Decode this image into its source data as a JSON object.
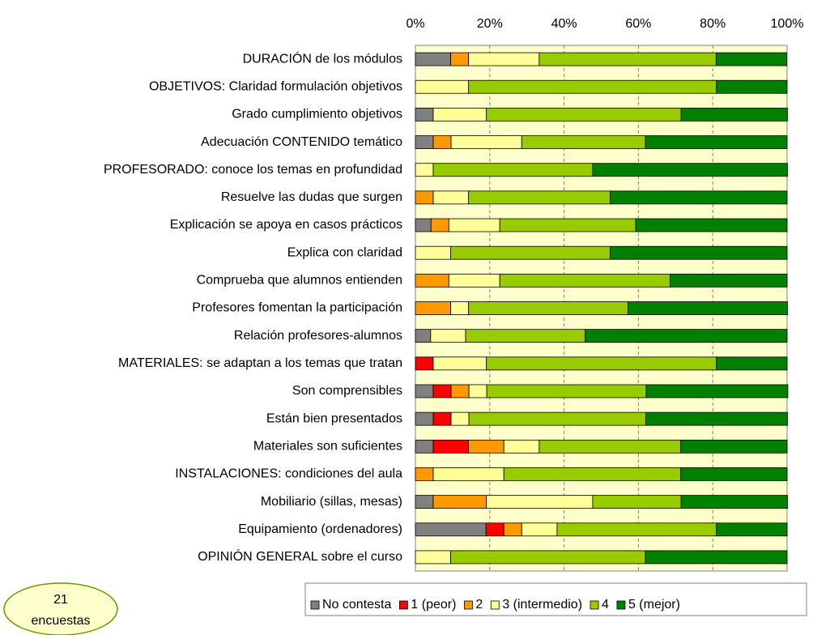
{
  "chart_data": {
    "type": "stacked_barh",
    "categories": [
      "DURACIÓN de los módulos",
      "OBJETIVOS: Claridad formulación objetivos",
      "Grado cumplimiento objetivos",
      "Adecuación CONTENIDO temático",
      "PROFESORADO: conoce los temas en profundidad",
      "Resuelve las dudas que surgen",
      "Explicación se apoya en casos prácticos",
      "Explica con claridad",
      "Comprueba que alumnos entienden",
      "Profesores fomentan la participación",
      "Relación profesores-alumnos",
      "MATERIALES: se adaptan a los temas que tratan",
      "Son comprensibles",
      "Están bien presentados",
      "Materiales son suficientes",
      "INSTALACIONES: condiciones del aula",
      "Mobiliario (sillas, mesas)",
      "Equipamiento (ordenadores)",
      "OPINIÓN GENERAL sobre el curso"
    ],
    "series": [
      {
        "name": "No contesta",
        "color": "#808080",
        "values": [
          9.5,
          0,
          4.8,
          4.8,
          0,
          0,
          4.2,
          0,
          0,
          0,
          4.1,
          0,
          4.8,
          4.8,
          4.8,
          0,
          4.8,
          19.0,
          0
        ]
      },
      {
        "name": "1 (peor)",
        "color": "#ff0000",
        "values": [
          0,
          0,
          0,
          0,
          0,
          0,
          0,
          0,
          0,
          0,
          0,
          4.8,
          4.8,
          4.8,
          9.5,
          0,
          0,
          4.8,
          0
        ]
      },
      {
        "name": "2",
        "color": "#ff9900",
        "values": [
          4.8,
          0,
          0,
          4.8,
          0,
          4.8,
          4.8,
          0,
          9.0,
          9.5,
          0,
          0,
          4.8,
          0,
          9.5,
          4.8,
          14.3,
          4.8,
          0
        ]
      },
      {
        "name": "3 (intermedio)",
        "color": "#ffff99",
        "values": [
          19.0,
          14.3,
          14.3,
          19.0,
          4.8,
          9.5,
          13.7,
          9.5,
          13.7,
          4.8,
          9.4,
          14.3,
          4.8,
          4.8,
          9.5,
          19.0,
          28.6,
          9.5,
          9.5
        ]
      },
      {
        "name": "4",
        "color": "#99cc00",
        "values": [
          47.6,
          66.7,
          52.4,
          33.3,
          42.9,
          38.1,
          36.6,
          42.9,
          45.8,
          42.9,
          32.2,
          61.9,
          42.9,
          47.6,
          38.1,
          47.6,
          23.8,
          42.9,
          52.4
        ]
      },
      {
        "name": "5 (mejor)",
        "color": "#008000",
        "values": [
          19.0,
          19.0,
          28.6,
          38.1,
          52.4,
          47.6,
          40.7,
          47.6,
          31.5,
          42.9,
          54.3,
          19.0,
          38.1,
          38.1,
          28.6,
          28.6,
          28.6,
          19.0,
          38.1
        ]
      }
    ],
    "xlim": [
      0,
      100
    ],
    "xticks": [
      {
        "value": 0,
        "label": "0%"
      },
      {
        "value": 20,
        "label": "20%"
      },
      {
        "value": 40,
        "label": "40%"
      },
      {
        "value": 60,
        "label": "60%"
      },
      {
        "value": 80,
        "label": "80%"
      },
      {
        "value": 100,
        "label": "100%"
      }
    ],
    "grid": true,
    "legend": "bottom",
    "annotation": [
      "21",
      "encuestas"
    ]
  }
}
